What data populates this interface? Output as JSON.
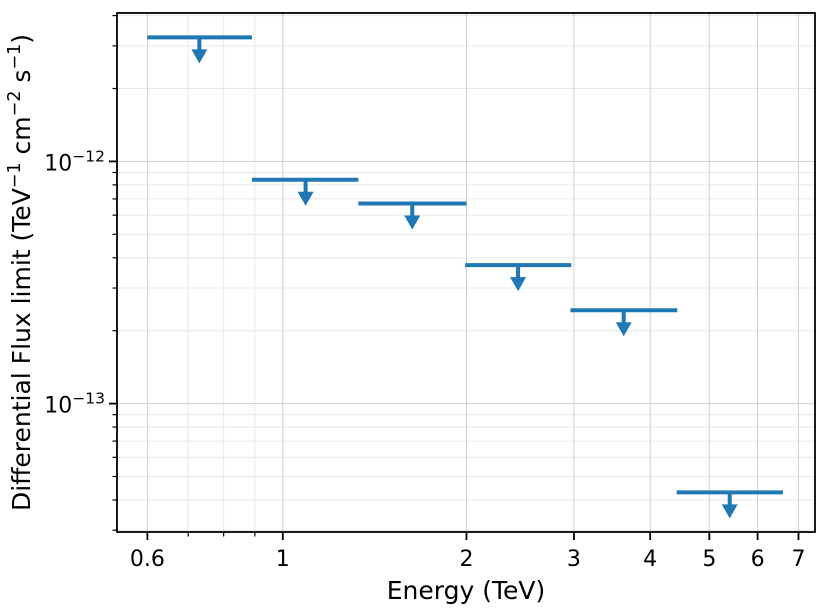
{
  "chart_data": {
    "type": "scatter",
    "subtype": "upper-limits-errorbar",
    "title": "",
    "xlabel": "Energy (TeV)",
    "ylabel": "Differential Flux limit (TeV⁻¹ cm⁻² s⁻¹)",
    "ylabel_segments": [
      {
        "text": "Differential Flux limit (TeV"
      },
      {
        "text": "−1",
        "sup": true
      },
      {
        "text": " cm"
      },
      {
        "text": "−2",
        "sup": true
      },
      {
        "text": " s"
      },
      {
        "text": "−1",
        "sup": true
      },
      {
        "text": ")"
      }
    ],
    "log_x": true,
    "log_y": true,
    "xlim": [
      0.535,
      7.45
    ],
    "ylim": [
      2.95e-14,
      4.1e-12
    ],
    "grid": "both",
    "legend": "none",
    "x_ticks": [
      {
        "value": 0.6,
        "label": "0.6"
      },
      {
        "value": 1,
        "label": "1"
      },
      {
        "value": 2,
        "label": "2"
      },
      {
        "value": 3,
        "label": "3"
      },
      {
        "value": 4,
        "label": "4"
      },
      {
        "value": 5,
        "label": "5"
      },
      {
        "value": 6,
        "label": "6"
      },
      {
        "value": 7,
        "label": "7"
      }
    ],
    "x_minor_ticks": [
      0.7,
      0.8,
      0.9
    ],
    "y_ticks": [
      {
        "value": 1e-12,
        "base": "10",
        "exp": "−12"
      },
      {
        "value": 1e-13,
        "base": "10",
        "exp": "−13"
      }
    ],
    "y_minor_ticks": [
      4e-12,
      3e-12,
      2e-12,
      9e-13,
      8e-13,
      7e-13,
      6e-13,
      5e-13,
      4e-13,
      3e-13,
      2e-13,
      9e-14,
      8e-14,
      7e-14,
      6e-14,
      5e-14,
      4e-14,
      3e-14
    ],
    "series": [
      {
        "name": "differential-flux-upper-limits",
        "color": "#1f77b4",
        "marker": "downward-arrow-upper-limit",
        "points": [
          {
            "x": 0.73,
            "x_lo": 0.6,
            "x_hi": 0.89,
            "y": 3.25e-12
          },
          {
            "x": 1.09,
            "x_lo": 0.89,
            "x_hi": 1.33,
            "y": 8.4e-13
          },
          {
            "x": 1.63,
            "x_lo": 1.33,
            "x_hi": 2.0,
            "y": 6.7e-13
          },
          {
            "x": 2.43,
            "x_lo": 1.99,
            "x_hi": 2.97,
            "y": 3.73e-13
          },
          {
            "x": 3.62,
            "x_lo": 2.96,
            "x_hi": 4.43,
            "y": 2.43e-13
          },
          {
            "x": 5.4,
            "x_lo": 4.42,
            "x_hi": 6.6,
            "y": 4.3e-14
          }
        ]
      }
    ],
    "colors": {
      "marker": "#1f77b4",
      "spine": "#000000",
      "grid_major": "#cfcfcf",
      "grid_minor": "#e8e8e8",
      "background": "#ffffff"
    }
  }
}
